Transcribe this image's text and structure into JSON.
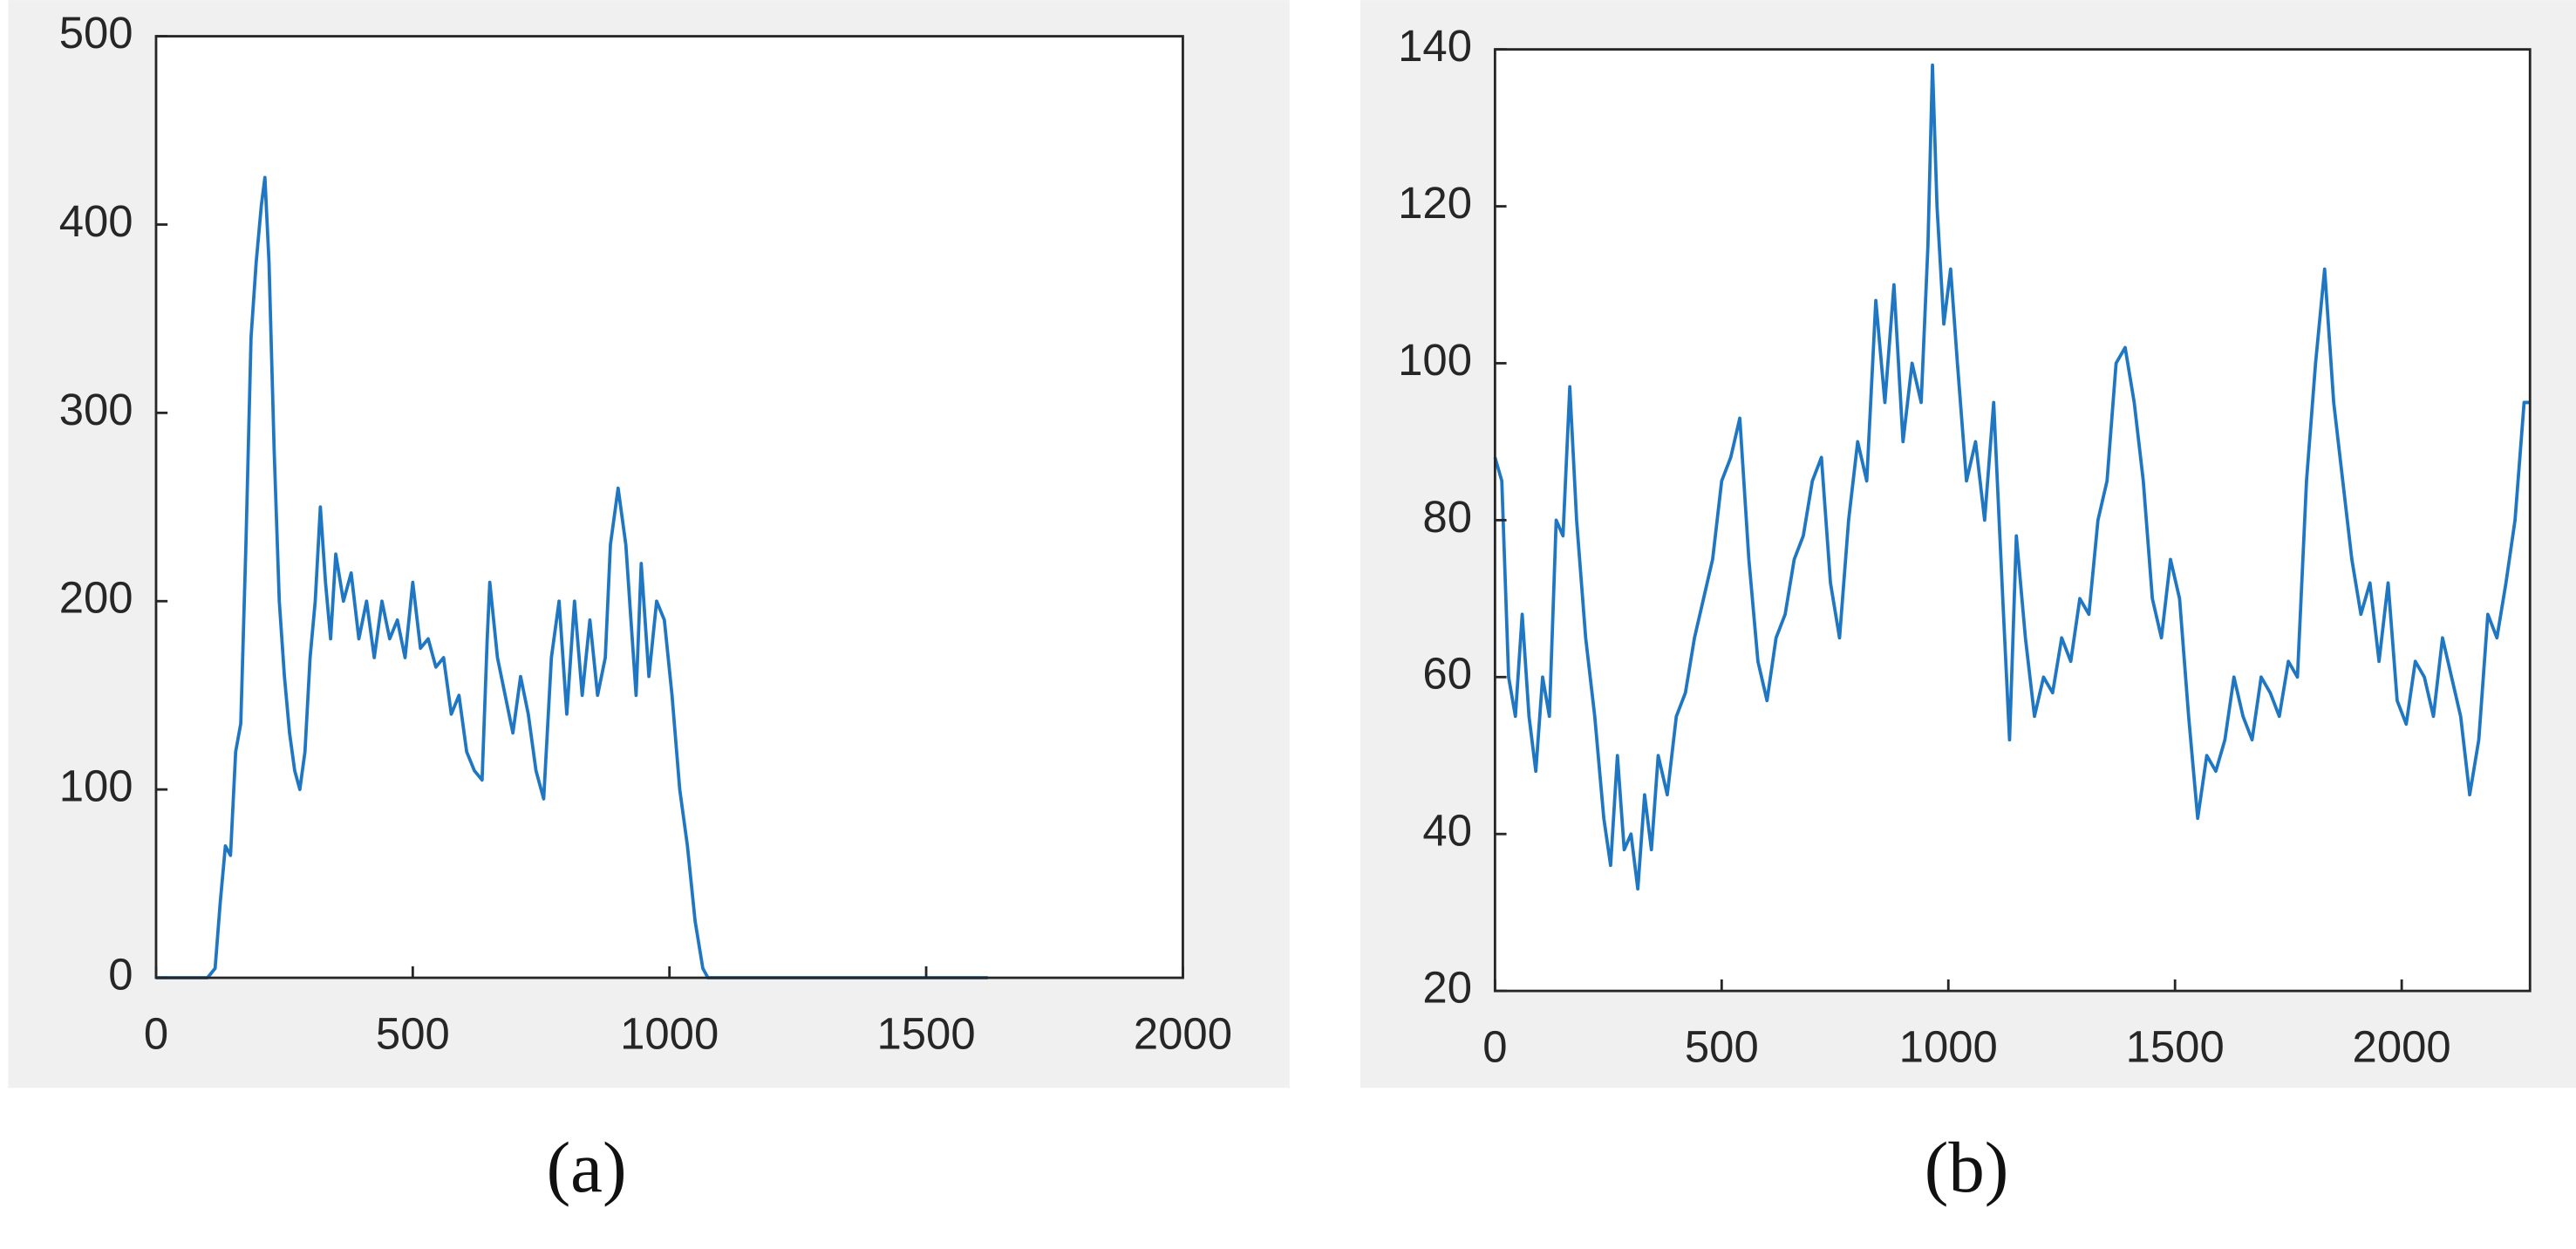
{
  "chart_data": [
    {
      "type": "line",
      "caption": "(a)",
      "color": "#1f77c4",
      "xlim": [
        0,
        2000
      ],
      "xticks": [
        0,
        500,
        1000,
        1500,
        2000
      ],
      "ylim": [
        0,
        500
      ],
      "yticks": [
        0,
        100,
        200,
        300,
        400,
        500
      ],
      "x": [
        0,
        100,
        115,
        125,
        135,
        145,
        155,
        165,
        175,
        185,
        195,
        205,
        212,
        220,
        230,
        240,
        250,
        260,
        270,
        280,
        290,
        300,
        310,
        320,
        330,
        340,
        350,
        365,
        380,
        395,
        410,
        425,
        440,
        455,
        470,
        485,
        500,
        515,
        530,
        545,
        560,
        575,
        590,
        605,
        620,
        635,
        645,
        650,
        665,
        680,
        695,
        710,
        725,
        740,
        755,
        770,
        785,
        800,
        815,
        830,
        845,
        860,
        875,
        885,
        900,
        915,
        925,
        935,
        945,
        960,
        975,
        990,
        1005,
        1020,
        1035,
        1050,
        1065,
        1075,
        1620
      ],
      "values": [
        0,
        0,
        5,
        40,
        70,
        65,
        120,
        135,
        230,
        340,
        380,
        410,
        425,
        380,
        280,
        200,
        160,
        130,
        110,
        100,
        120,
        170,
        200,
        250,
        210,
        180,
        225,
        200,
        215,
        180,
        200,
        170,
        200,
        180,
        190,
        170,
        210,
        175,
        180,
        165,
        170,
        140,
        150,
        120,
        110,
        105,
        180,
        210,
        170,
        150,
        130,
        160,
        140,
        110,
        95,
        170,
        200,
        140,
        200,
        150,
        190,
        150,
        170,
        230,
        260,
        230,
        190,
        150,
        220,
        160,
        200,
        190,
        150,
        100,
        70,
        30,
        5,
        0,
        0
      ]
    },
    {
      "type": "line",
      "caption": "(b)",
      "color": "#1f77c4",
      "xlim": [
        0,
        2283
      ],
      "xticks": [
        0,
        500,
        1000,
        1500,
        2000
      ],
      "ylim": [
        20,
        140
      ],
      "yticks": [
        20,
        40,
        60,
        80,
        100,
        120,
        140
      ],
      "x": [
        0,
        15,
        30,
        45,
        60,
        75,
        90,
        105,
        120,
        135,
        150,
        165,
        180,
        200,
        220,
        240,
        255,
        270,
        285,
        300,
        315,
        330,
        345,
        360,
        380,
        400,
        420,
        440,
        460,
        480,
        500,
        520,
        540,
        560,
        580,
        600,
        620,
        640,
        660,
        680,
        700,
        720,
        740,
        760,
        780,
        800,
        820,
        840,
        860,
        880,
        900,
        920,
        940,
        955,
        965,
        975,
        990,
        1005,
        1020,
        1040,
        1060,
        1080,
        1100,
        1120,
        1135,
        1150,
        1170,
        1190,
        1210,
        1230,
        1250,
        1270,
        1290,
        1310,
        1330,
        1350,
        1370,
        1390,
        1410,
        1430,
        1450,
        1470,
        1490,
        1510,
        1530,
        1550,
        1570,
        1590,
        1610,
        1630,
        1650,
        1670,
        1690,
        1710,
        1730,
        1750,
        1770,
        1790,
        1810,
        1830,
        1850,
        1870,
        1890,
        1910,
        1930,
        1950,
        1970,
        1990,
        2010,
        2030,
        2050,
        2070,
        2090,
        2110,
        2130,
        2150,
        2170,
        2190,
        2210,
        2230,
        2250,
        2270,
        2283
      ],
      "values": [
        88,
        85,
        60,
        55,
        68,
        55,
        48,
        60,
        55,
        80,
        78,
        97,
        80,
        65,
        55,
        42,
        36,
        50,
        38,
        40,
        33,
        45,
        38,
        50,
        45,
        55,
        58,
        65,
        70,
        75,
        85,
        88,
        93,
        75,
        62,
        57,
        65,
        68,
        75,
        78,
        85,
        88,
        72,
        65,
        80,
        90,
        85,
        108,
        95,
        110,
        90,
        100,
        95,
        115,
        138,
        120,
        105,
        112,
        100,
        85,
        90,
        80,
        95,
        70,
        52,
        78,
        65,
        55,
        60,
        58,
        65,
        62,
        70,
        68,
        80,
        85,
        100,
        102,
        95,
        85,
        70,
        65,
        75,
        70,
        55,
        42,
        50,
        48,
        52,
        60,
        55,
        52,
        60,
        58,
        55,
        62,
        60,
        85,
        100,
        112,
        95,
        85,
        75,
        68,
        72,
        62,
        72,
        57,
        54,
        62,
        60,
        55,
        65,
        60,
        55,
        45,
        52,
        68,
        65,
        72,
        80,
        95,
        95
      ]
    }
  ]
}
